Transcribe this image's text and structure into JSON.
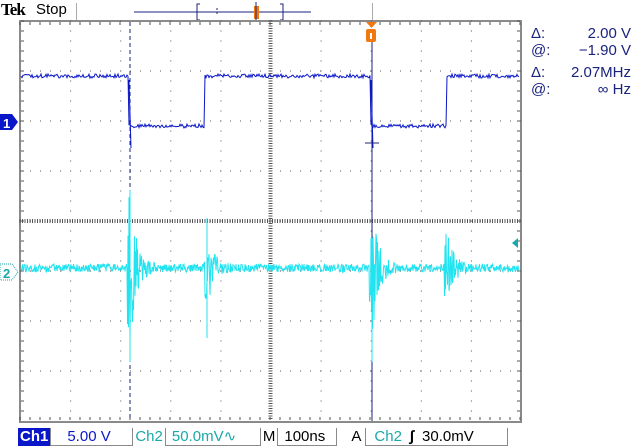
{
  "header": {
    "brand": "Tek",
    "status": "Stop"
  },
  "readouts": {
    "amp_delta_label": "Δ:",
    "amp_delta_value": "2.00 V",
    "amp_at_label": "@:",
    "amp_at_value": "−1.90 V",
    "freq_delta_label": "Δ:",
    "freq_delta_value": "2.07MHz",
    "freq_at_label": "@:",
    "freq_at_value": "∞ Hz"
  },
  "channels": {
    "ch1_marker": "1",
    "ch2_marker": "2"
  },
  "bottom": {
    "ch1_label": "Ch1",
    "ch1_scale": "5.00 V",
    "ch2_label": "Ch2",
    "ch2_scale": "50.0mV∿",
    "m_label": "M",
    "timebase": "100ns",
    "a_label": "A",
    "trig_source": "Ch2",
    "trig_slope": "∫",
    "trig_level": "30.0mV"
  },
  "colors": {
    "ch1": "#0a17c8",
    "ch2": "#22e3f0",
    "trigger": "#f07a10",
    "text": "#1a237e"
  }
}
